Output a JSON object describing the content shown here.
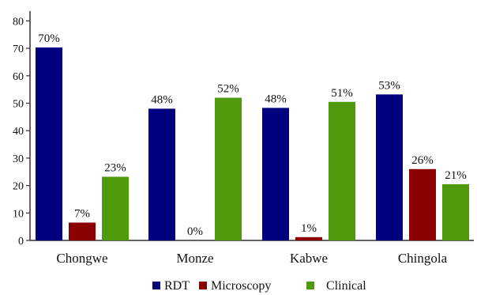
{
  "chart_data": {
    "type": "bar",
    "categories": [
      "Chongwe",
      "Monze",
      "Kabwe",
      "Chingola"
    ],
    "series": [
      {
        "name": "RDT",
        "values": [
          70,
          48,
          48,
          53
        ],
        "labels": [
          "70%",
          "48%",
          "48%",
          "53%"
        ],
        "color": "#00007f"
      },
      {
        "name": "Microscopy",
        "values": [
          7,
          0,
          1,
          26
        ],
        "labels": [
          "7%",
          "0%",
          "1%",
          "26%"
        ],
        "color": "#8b0000"
      },
      {
        "name": "Clinical",
        "values": [
          23,
          52,
          51,
          21
        ],
        "labels": [
          "23%",
          "52%",
          "51%",
          "21%"
        ],
        "color": "#4f9a0b"
      }
    ],
    "bar_values_drawn": [
      [
        70.3,
        48,
        48.3,
        53.2
      ],
      [
        6.5,
        0,
        1.2,
        26
      ],
      [
        23.2,
        52,
        50.5,
        20.5
      ]
    ],
    "yticks": [
      "0",
      "10",
      "20",
      "30",
      "40",
      "50",
      "60",
      "70",
      "80"
    ],
    "ylim": [
      0,
      80
    ],
    "grid": false,
    "legend_position": "bottom"
  }
}
